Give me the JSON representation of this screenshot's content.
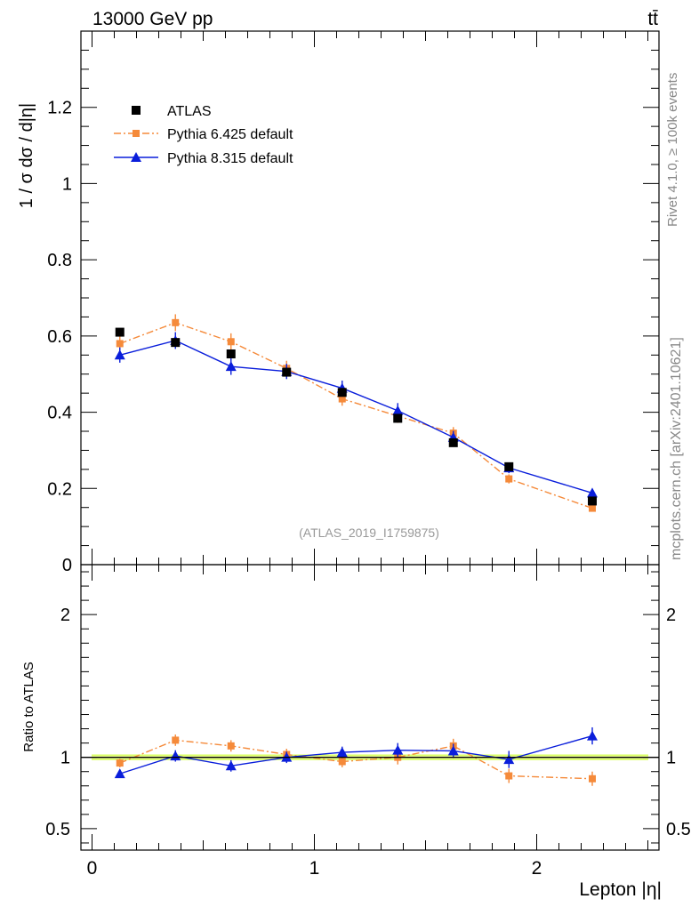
{
  "header": {
    "energy": "13000 GeV pp",
    "process": "tt̄"
  },
  "side_labels": {
    "rivet": "Rivet 4.1.0, ≥ 100k events",
    "source": "mcplots.cern.ch [arXiv:2401.10621]"
  },
  "watermark": "(ATLAS_2019_I1759875)",
  "colors": {
    "atlas": "#000000",
    "pythia6": "#f58a3a",
    "pythia8": "#0a1edb",
    "band": "#d9ff66",
    "band_inner": "#f2ff99"
  },
  "chart_data": [
    {
      "type": "scatter",
      "panel": "main",
      "ylabel": "1 / σ  dσ / d|η|",
      "xlabel": "Lepton |η|",
      "xlim": [
        -0.05,
        2.55
      ],
      "ylim": [
        0,
        1.4
      ],
      "yticks": [
        0,
        0.2,
        0.4,
        0.6,
        0.8,
        1,
        1.2
      ],
      "ytick_labels": [
        "0",
        "0.2",
        "0.4",
        "0.6",
        "0.8",
        "1",
        "1.2"
      ],
      "legend_position": "top-left",
      "x": [
        0.125,
        0.375,
        0.625,
        0.875,
        1.125,
        1.375,
        1.625,
        1.875,
        2.25
      ],
      "series": [
        {
          "name": "ATLAS",
          "style": "data",
          "values": [
            0.61,
            0.583,
            0.553,
            0.505,
            0.452,
            0.384,
            0.32,
            0.257,
            0.167
          ],
          "errors": [
            0.007,
            0.007,
            0.006,
            0.005,
            0.005,
            0.004,
            0.004,
            0.004,
            0.003
          ]
        },
        {
          "name": "Pythia 6.425 default",
          "style": "dashdot",
          "values": [
            0.58,
            0.635,
            0.585,
            0.515,
            0.435,
            0.39,
            0.345,
            0.225,
            0.148
          ],
          "errors": [
            0.02,
            0.022,
            0.022,
            0.02,
            0.018,
            0.018,
            0.016,
            0.012,
            0.008
          ]
        },
        {
          "name": "Pythia 8.315 default",
          "style": "solid",
          "values": [
            0.55,
            0.588,
            0.52,
            0.507,
            0.463,
            0.404,
            0.334,
            0.254,
            0.188
          ],
          "errors": [
            0.02,
            0.022,
            0.022,
            0.02,
            0.02,
            0.02,
            0.017,
            0.014,
            0.01
          ]
        }
      ]
    },
    {
      "type": "scatter",
      "panel": "ratio",
      "ylabel": "Ratio to ATLAS",
      "xlabel": "Lepton |η|",
      "xlim": [
        -0.05,
        2.55
      ],
      "ylim": [
        0.35,
        2.35
      ],
      "xticks": [
        0,
        1,
        2
      ],
      "xtick_labels": [
        "0",
        "1",
        "2"
      ],
      "yticks": [
        0.5,
        1,
        2
      ],
      "ytick_labels": [
        "0.5",
        "1",
        "2"
      ],
      "x": [
        0.125,
        0.375,
        0.625,
        0.875,
        1.125,
        1.375,
        1.625,
        1.875,
        2.25
      ],
      "band": {
        "lower": 0.98,
        "upper": 1.02
      },
      "series": [
        {
          "name": "Pythia 6.425 default",
          "style": "dashdot",
          "values": [
            0.96,
            1.12,
            1.08,
            1.02,
            0.97,
            1.0,
            1.08,
            0.87,
            0.85
          ],
          "errors": [
            0.03,
            0.04,
            0.04,
            0.04,
            0.04,
            0.05,
            0.05,
            0.05,
            0.05
          ]
        },
        {
          "name": "Pythia 8.315 default",
          "style": "solid",
          "values": [
            0.885,
            1.01,
            0.94,
            1.0,
            1.035,
            1.05,
            1.045,
            0.985,
            1.15
          ],
          "errors": [
            0.03,
            0.04,
            0.04,
            0.04,
            0.04,
            0.05,
            0.05,
            0.06,
            0.06
          ]
        }
      ]
    }
  ]
}
